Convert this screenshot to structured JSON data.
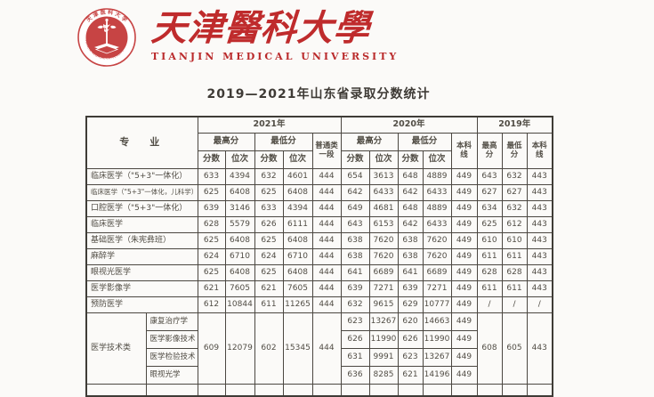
{
  "brand": {
    "university_cn": "天津醫科大學",
    "university_en": "TIANJIN MEDICAL UNIVERSITY",
    "seal_text_cn": "天津医科大学",
    "seal_text_en": "TIANJIN MEDICAL UNIVERSITY"
  },
  "title": "2019—2021年山东省录取分数统计",
  "colors": {
    "brand_red": "#bf2b2c",
    "seal_red": "#c74444",
    "table_border": "#4b4741",
    "text": "#514d45"
  },
  "table": {
    "headers": {
      "major": "专　业",
      "years": [
        "2021年",
        "2020年",
        "2019年"
      ],
      "max": "最高分",
      "min": "最低分",
      "score": "分数",
      "rank": "位次",
      "regular": "普通类一段",
      "benke": "本科线"
    },
    "rows": [
      {
        "label": "临床医学（\"5+3\"一体化）",
        "small": false,
        "y2021": [
          "633",
          "4394",
          "632",
          "4601",
          "444"
        ],
        "y2020": [
          "654",
          "3613",
          "648",
          "4889",
          "449"
        ],
        "y2019": [
          "643",
          "632",
          "443"
        ]
      },
      {
        "label": "临床医学（\"5+3\"一体化，儿科学）",
        "small": true,
        "y2021": [
          "625",
          "6408",
          "625",
          "6408",
          "444"
        ],
        "y2020": [
          "642",
          "6433",
          "642",
          "6433",
          "449"
        ],
        "y2019": [
          "627",
          "627",
          "443"
        ]
      },
      {
        "label": "口腔医学（\"5+3\"一体化）",
        "small": false,
        "y2021": [
          "639",
          "3146",
          "633",
          "4394",
          "444"
        ],
        "y2020": [
          "649",
          "4681",
          "648",
          "4889",
          "449"
        ],
        "y2019": [
          "634",
          "632",
          "443"
        ]
      },
      {
        "label": "临床医学",
        "small": false,
        "y2021": [
          "628",
          "5579",
          "626",
          "6111",
          "444"
        ],
        "y2020": [
          "643",
          "6153",
          "642",
          "6433",
          "449"
        ],
        "y2019": [
          "625",
          "612",
          "443"
        ]
      },
      {
        "label": "基础医学（朱宪彝班）",
        "small": false,
        "y2021": [
          "625",
          "6408",
          "625",
          "6408",
          "444"
        ],
        "y2020": [
          "638",
          "7620",
          "638",
          "7620",
          "449"
        ],
        "y2019": [
          "610",
          "610",
          "443"
        ]
      },
      {
        "label": "麻醉学",
        "small": false,
        "y2021": [
          "624",
          "6710",
          "624",
          "6710",
          "444"
        ],
        "y2020": [
          "638",
          "7620",
          "638",
          "7620",
          "449"
        ],
        "y2019": [
          "611",
          "611",
          "443"
        ]
      },
      {
        "label": "眼视光医学",
        "small": false,
        "y2021": [
          "625",
          "6408",
          "625",
          "6408",
          "444"
        ],
        "y2020": [
          "641",
          "6689",
          "641",
          "6689",
          "449"
        ],
        "y2019": [
          "628",
          "628",
          "443"
        ]
      },
      {
        "label": "医学影像学",
        "small": false,
        "y2021": [
          "621",
          "7605",
          "621",
          "7605",
          "444"
        ],
        "y2020": [
          "639",
          "7271",
          "639",
          "7271",
          "449"
        ],
        "y2019": [
          "611",
          "611",
          "443"
        ]
      },
      {
        "label": "预防医学",
        "small": false,
        "y2021": [
          "612",
          "10844",
          "611",
          "11265",
          "444"
        ],
        "y2020": [
          "632",
          "9615",
          "629",
          "10777",
          "449"
        ],
        "y2019": [
          "/",
          "/",
          "/"
        ]
      }
    ],
    "tech_group": {
      "label": "医学技术类",
      "y2021": [
        "609",
        "12079",
        "602",
        "15345",
        "444"
      ],
      "y2019": [
        "608",
        "605",
        "443"
      ],
      "sub_rows": [
        {
          "label": "康复治疗学",
          "y2020": [
            "623",
            "13267",
            "620",
            "14663",
            "449"
          ]
        },
        {
          "label": "医学影像技术",
          "y2020": [
            "626",
            "11990",
            "626",
            "11990",
            "449"
          ]
        },
        {
          "label": "医学检验技术",
          "y2020": [
            "631",
            "9991",
            "623",
            "13267",
            "449"
          ]
        },
        {
          "label": "眼视光学",
          "y2020": [
            "636",
            "8285",
            "621",
            "14196",
            "449"
          ]
        }
      ]
    },
    "partial_row": {
      "label": "",
      "sub_label": ""
    }
  }
}
